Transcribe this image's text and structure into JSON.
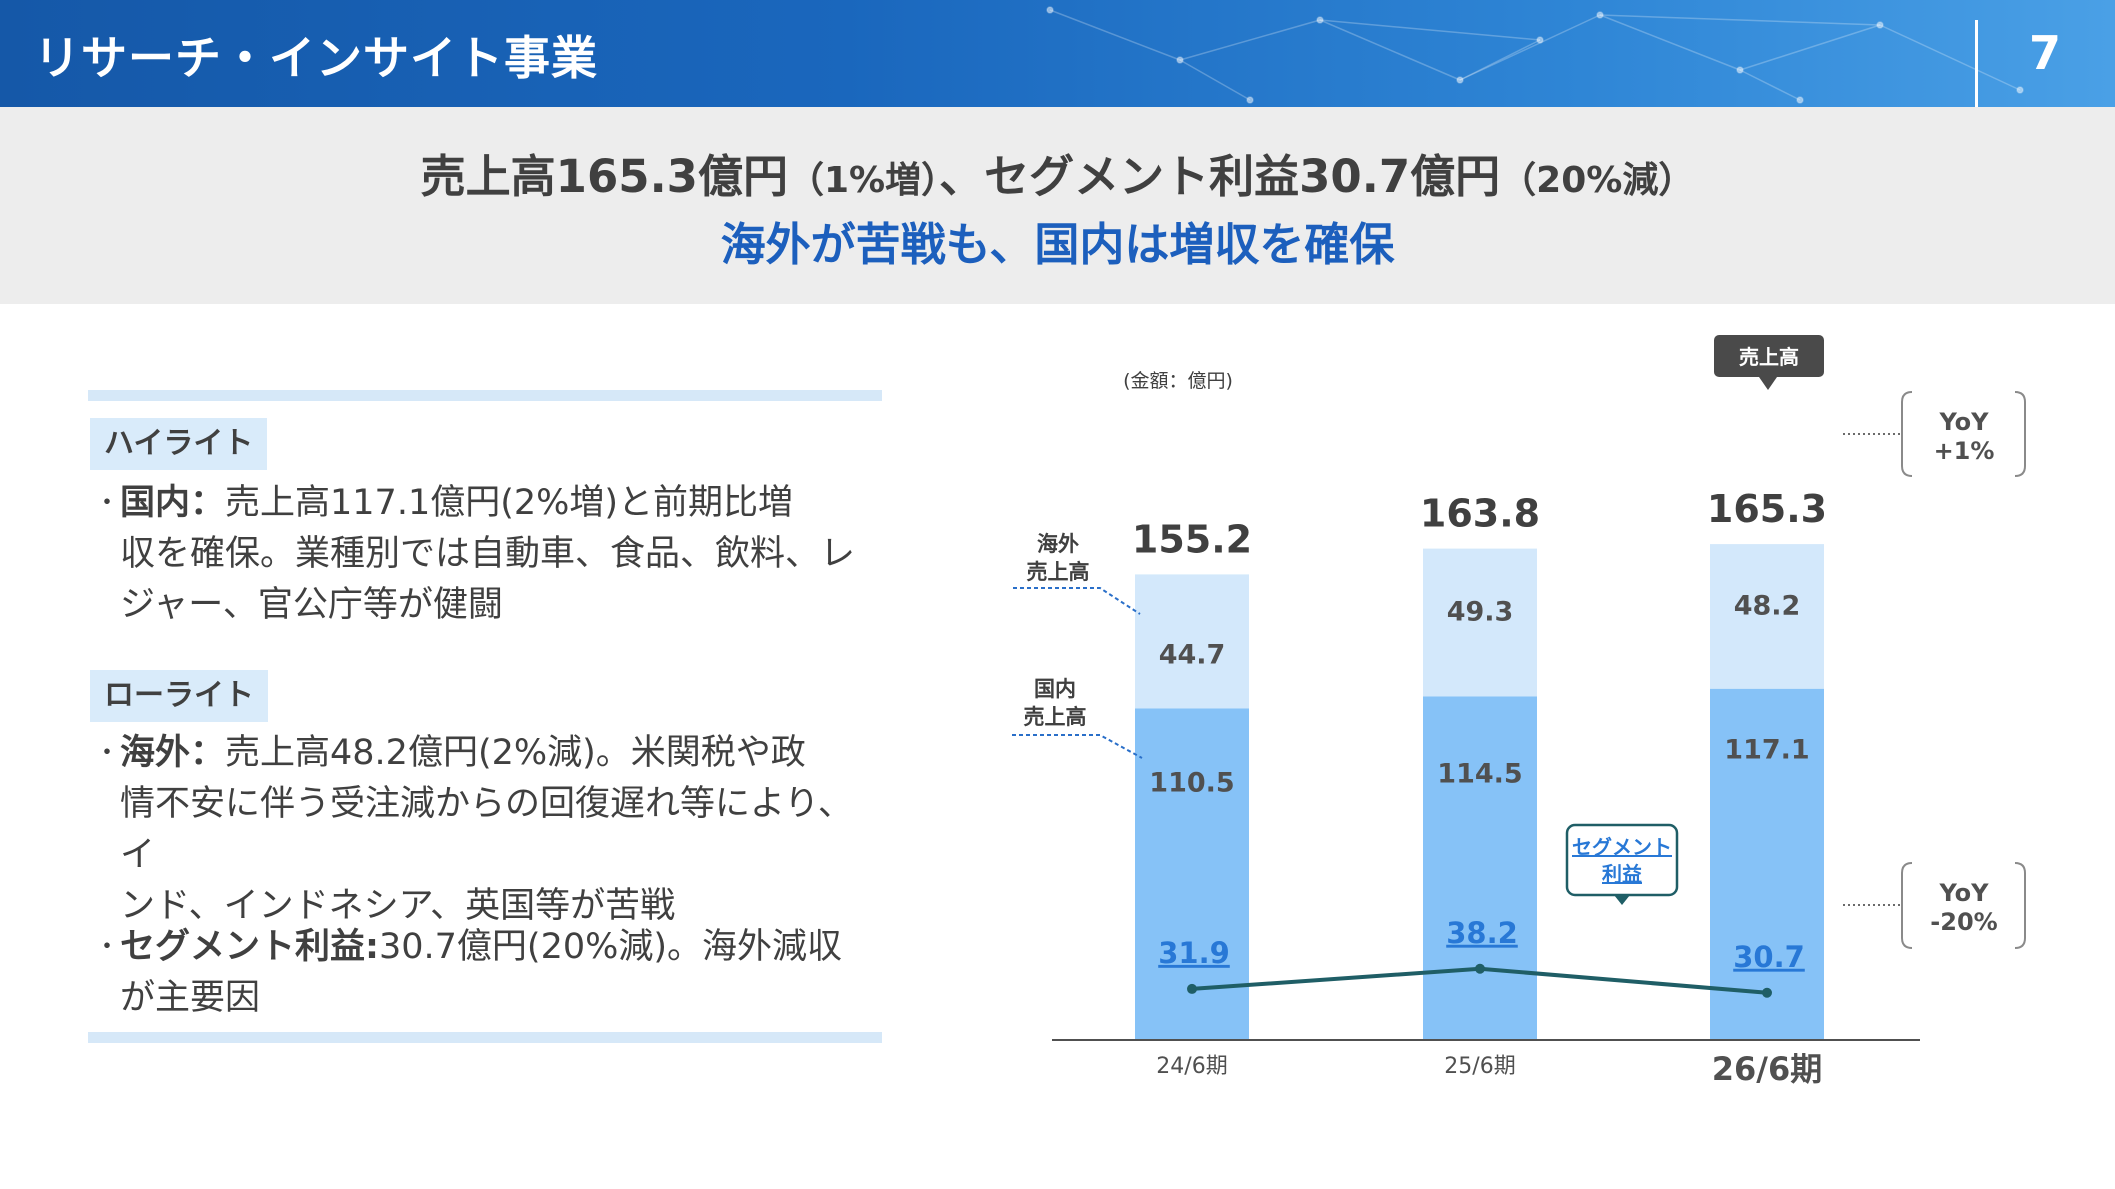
{
  "header": {
    "title": "リサーチ・インサイト事業",
    "page_number": "7"
  },
  "headline": {
    "part1": "売上高165.3億円",
    "part1_note": "（1%増）",
    "part2": "、セグメント利益30.7億円",
    "part2_note": "（20%減）",
    "sub": "海外が苦戦も、国内は増収を確保"
  },
  "highlight": {
    "label": "ハイライト",
    "bullet": "・",
    "term": "国内：",
    "lines": [
      "売上高117.1億円(2%増)と前期比増",
      "収を確保。業種別では自動車、食品、飲料、レ",
      "ジャー、官公庁等が健闘"
    ]
  },
  "lowlight": {
    "label": "ローライト",
    "bullet": "・",
    "term": "海外：",
    "lines": [
      "売上高48.2億円(2%減)。米関税や政",
      "情不安に伴う受注減からの回復遅れ等により、イ",
      "ンド、インドネシア、英国等が苦戦"
    ],
    "term2": "セグメント利益:",
    "lines2": [
      "30.7億円(20%減)。海外減収",
      "が主要因"
    ]
  },
  "chart_data": {
    "type": "bar",
    "stacked": true,
    "unit_note": "(金額：億円)",
    "categories": [
      "24/6期",
      "25/6期",
      "26/6期"
    ],
    "series": [
      {
        "name": "国内売上高",
        "label_lines": [
          "国内",
          "売上高"
        ],
        "values": [
          110.5,
          114.5,
          117.1
        ],
        "color": "#86c2f7"
      },
      {
        "name": "海外売上高",
        "label_lines": [
          "海外",
          "売上高"
        ],
        "values": [
          44.7,
          49.3,
          48.2
        ],
        "color": "#d3e8fb"
      }
    ],
    "totals": [
      155.2,
      163.8,
      165.3
    ],
    "line_series": {
      "name": "セグメント利益",
      "label_lines": [
        "セグメント",
        "利益"
      ],
      "values": [
        31.9,
        38.2,
        30.7
      ],
      "color": "#1f5e66"
    },
    "callouts": {
      "sales_tag": "売上高",
      "yoy_sales": [
        "YoY",
        "+1%"
      ],
      "yoy_profit": [
        "YoY",
        "-20%"
      ]
    }
  }
}
